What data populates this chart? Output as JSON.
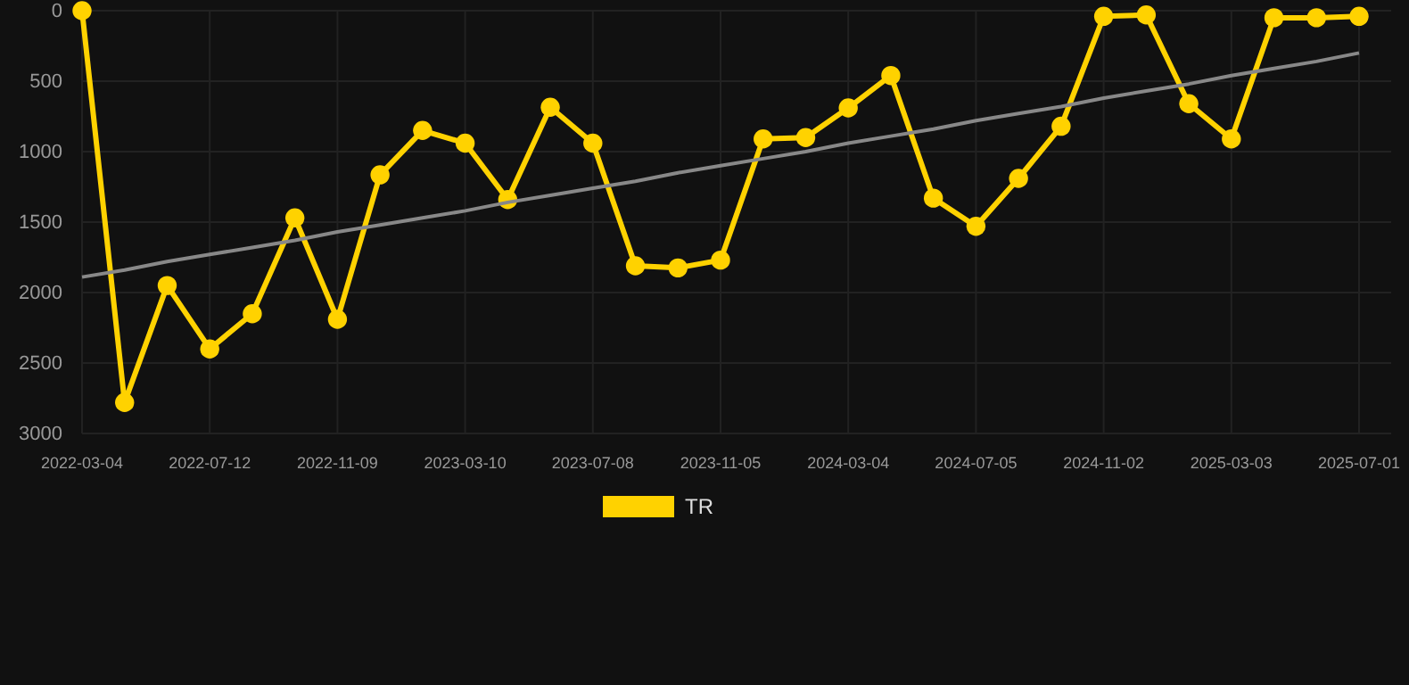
{
  "chart_data": {
    "type": "line",
    "categories": [
      "2022-03-04",
      null,
      null,
      "2022-07-12",
      null,
      null,
      "2022-11-09",
      null,
      null,
      "2023-03-10",
      null,
      null,
      "2023-07-08",
      null,
      null,
      "2023-11-05",
      null,
      null,
      "2024-03-04",
      null,
      null,
      "2024-07-05",
      null,
      null,
      "2024-11-02",
      null,
      null,
      "2025-03-03",
      null,
      null,
      "2025-07-01"
    ],
    "series": [
      {
        "name": "TR",
        "color": "#ffd200",
        "values": [
          0,
          2780,
          1950,
          2400,
          2150,
          1470,
          2190,
          1165,
          850,
          940,
          1340,
          685,
          940,
          1810,
          1825,
          1770,
          910,
          900,
          690,
          460,
          1330,
          1530,
          1190,
          820,
          40,
          30,
          660,
          910,
          50,
          50,
          40
        ]
      },
      {
        "type": "line",
        "color": "#888888",
        "values": [
          1890,
          1840,
          1780,
          1730,
          1680,
          1630,
          1570,
          1520,
          1470,
          1420,
          1360,
          1310,
          1260,
          1210,
          1150,
          1100,
          1050,
          1000,
          940,
          890,
          840,
          780,
          730,
          680,
          620,
          570,
          520,
          460,
          410,
          360,
          300
        ],
        "marker": "none"
      }
    ],
    "ylim": [
      3000,
      0
    ],
    "yticks": [
      0,
      500,
      1000,
      1500,
      2000,
      2500,
      3000
    ],
    "grid": true,
    "legend": "bottom",
    "marker": "circle",
    "line_style": "solid"
  }
}
